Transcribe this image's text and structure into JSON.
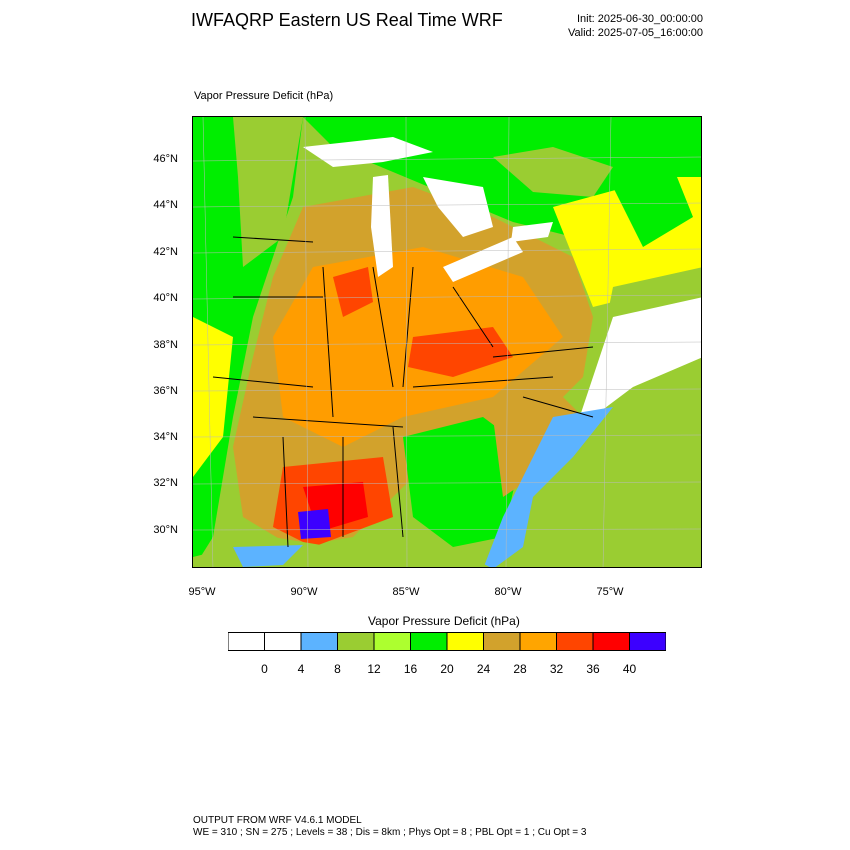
{
  "header": {
    "title": "IWFAQRP Eastern US Real Time WRF",
    "init": "Init: 2025-06-30_00:00:00",
    "valid": "Valid: 2025-07-05_16:00:00"
  },
  "map": {
    "label": "Vapor Pressure Deficit   (hPa)",
    "lat_labels": [
      "46°N",
      "44°N",
      "42°N",
      "40°N",
      "38°N",
      "36°N",
      "34°N",
      "32°N",
      "30°N"
    ],
    "lon_labels": [
      "95°W",
      "90°W",
      "85°W",
      "80°W",
      "75°W"
    ],
    "colors": {
      "water": "#5cb3ff",
      "land_low": "#9acd32",
      "green": "#00ee00",
      "yellow": "#ffff00",
      "tan": "#d2a22c",
      "orange": "#ff9d00",
      "red_orange": "#ff4500",
      "red": "#ff0000",
      "purple": "#3c00ff"
    }
  },
  "legend": {
    "title": "Vapor Pressure Deficit   (hPa)",
    "ticks": [
      "0",
      "4",
      "8",
      "12",
      "16",
      "20",
      "24",
      "28",
      "32",
      "36",
      "40"
    ],
    "colors": [
      "#ffffff",
      "#ffffff",
      "#5cb3ff",
      "#9acd32",
      "#adff2f",
      "#00ee00",
      "#ffff00",
      "#d2a22c",
      "#ffa500",
      "#ff4500",
      "#ff0000",
      "#3c00ff"
    ]
  },
  "footer": {
    "line1": "OUTPUT FROM WRF V4.6.1 MODEL",
    "line2": "WE = 310 ; SN = 275 ; Levels = 38 ; Dis = 8km ; Phys Opt = 8 ; PBL Opt = 1 ; Cu Opt = 3"
  }
}
